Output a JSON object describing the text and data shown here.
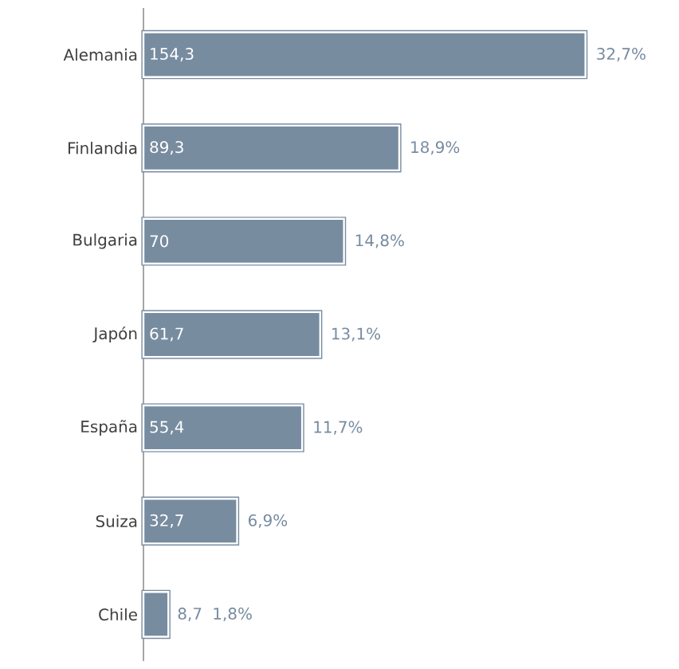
{
  "chart_data": {
    "type": "bar",
    "orientation": "horizontal",
    "color": "#788ca0",
    "categories": [
      "Alemania",
      "Finlandia",
      "Bulgaria",
      "Japón",
      "España",
      "Suiza",
      "Chile"
    ],
    "values": [
      154.3,
      89.3,
      70,
      61.7,
      55.4,
      32.7,
      8.7
    ],
    "value_labels": [
      "154,3",
      "89,3",
      "70",
      "61,7",
      "55,4",
      "32,7",
      "8,7"
    ],
    "annotations": [
      {
        "text": "32,7%",
        "x": 154.3,
        "y": "Alemania"
      },
      {
        "text": "18,9%",
        "x": 89.3,
        "y": "Finlandia"
      },
      {
        "text": "14,8%",
        "x": 70,
        "y": "Bulgaria"
      },
      {
        "text": "13,1%",
        "x": 61.7,
        "y": "Japón"
      },
      {
        "text": "11,7%",
        "x": 55.4,
        "y": "España"
      },
      {
        "text": "6,9%",
        "x": 32.7,
        "y": "Suiza"
      },
      {
        "text": "1,8%",
        "x": 8.7,
        "y": "Chile"
      }
    ]
  }
}
